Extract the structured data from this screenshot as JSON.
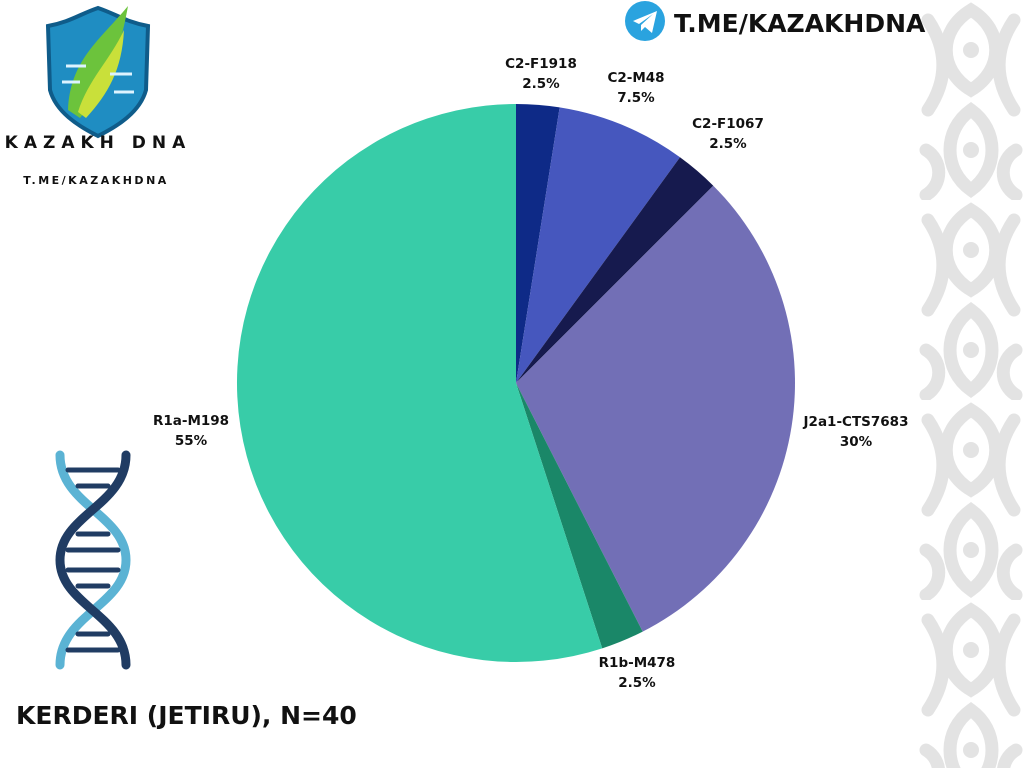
{
  "header": {
    "channel": "T.ME/KAZAKHDNA",
    "icon": "telegram-icon",
    "icon_color": "#2AA3DF"
  },
  "logo": {
    "brand": "KAZAKH DNA",
    "handle": "T.ME/KAZAKHDNA",
    "shield_color": "#1F8DC2",
    "leaf_colors": [
      "#6CC33C",
      "#C9E03A"
    ]
  },
  "chart_data": {
    "type": "pie",
    "title": "KERDERI (JETIRU), N=40",
    "start": "top",
    "direction": "clockwise",
    "slices": [
      {
        "label": "C2-F1918",
        "value": 2.5,
        "display": "2.5%",
        "color": "#0E2A87"
      },
      {
        "label": "C2-M48",
        "value": 7.5,
        "display": "7.5%",
        "color": "#4657BE"
      },
      {
        "label": "C2-F1067",
        "value": 2.5,
        "display": "2.5%",
        "color": "#161A4E"
      },
      {
        "label": "J2a1-CTS7683",
        "value": 30,
        "display": "30%",
        "color": "#726FB6"
      },
      {
        "label": "R1b-M478",
        "value": 2.5,
        "display": "2.5%",
        "color": "#1A8768"
      },
      {
        "label": "R1a-M198",
        "value": 55,
        "display": "55%",
        "color": "#38CCA8"
      }
    ]
  },
  "decor": {
    "dna_icon": "dna-helix-icon",
    "ornament": "kazakh-ornament-border",
    "ornament_color": "#E3E3E3"
  }
}
